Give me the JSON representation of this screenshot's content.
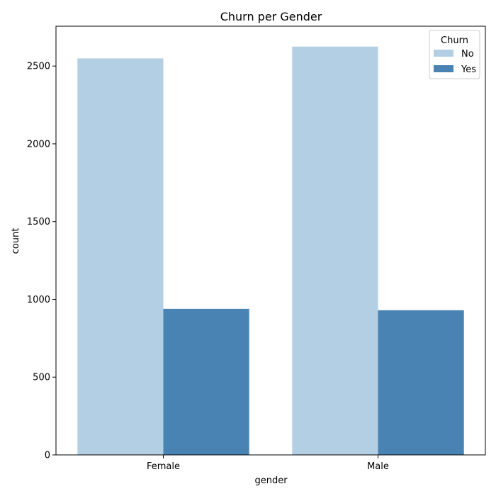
{
  "chart_data": {
    "type": "bar",
    "title": "Churn per Gender",
    "xlabel": "gender",
    "ylabel": "count",
    "categories": [
      "Female",
      "Male"
    ],
    "series": [
      {
        "name": "No",
        "values": [
          2549,
          2625
        ],
        "color": "#b3cfe3"
      },
      {
        "name": "Yes",
        "values": [
          939,
          930
        ],
        "color": "#4883b4"
      }
    ],
    "ylim": [
      0,
      2756
    ],
    "yticks": [
      0,
      500,
      1000,
      1500,
      2000,
      2500
    ],
    "legend": {
      "title": "Churn",
      "placement": "top-right"
    },
    "grid": false
  }
}
